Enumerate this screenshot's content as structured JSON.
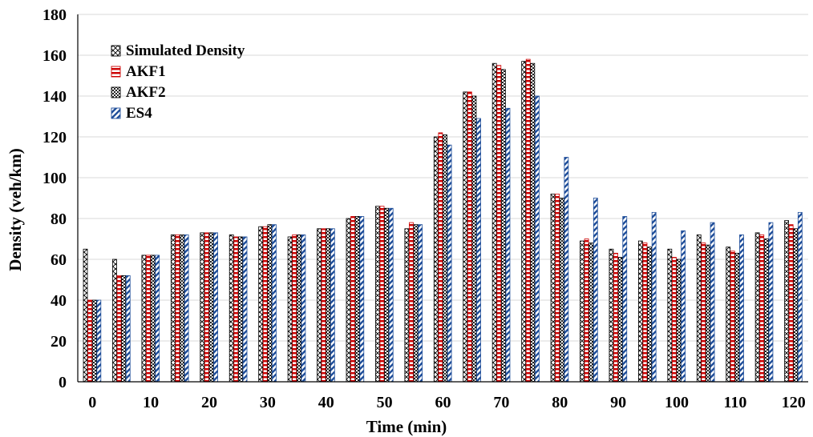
{
  "chart_data": {
    "type": "bar",
    "xlabel": "Time (min)",
    "ylabel": "Density (veh/km)",
    "ylim": [
      0,
      180
    ],
    "y_ticks": [
      0,
      20,
      40,
      60,
      80,
      100,
      120,
      140,
      160,
      180
    ],
    "x_tick_labels": [
      "0",
      "10",
      "20",
      "30",
      "40",
      "50",
      "60",
      "70",
      "80",
      "90",
      "100",
      "110",
      "120"
    ],
    "categories": [
      0,
      5,
      10,
      15,
      20,
      25,
      30,
      35,
      40,
      45,
      50,
      55,
      60,
      65,
      70,
      75,
      80,
      85,
      90,
      95,
      100,
      105,
      110,
      115,
      120
    ],
    "grid": "horizontal",
    "legend_position": "top-left",
    "series": [
      {
        "name": "Simulated Density",
        "pattern": "diamond",
        "color": "#000000",
        "values": [
          65,
          60,
          62,
          72,
          73,
          72,
          76,
          71,
          75,
          80,
          86,
          75,
          120,
          142,
          156,
          157,
          92,
          69,
          65,
          69,
          65,
          72,
          66,
          73,
          79
        ]
      },
      {
        "name": "AKF1",
        "pattern": "hstripe",
        "color": "#cc0000",
        "values": [
          40,
          52,
          62,
          72,
          73,
          71,
          76,
          72,
          75,
          81,
          86,
          78,
          122,
          142,
          155,
          158,
          92,
          70,
          63,
          68,
          61,
          68,
          64,
          72,
          77
        ]
      },
      {
        "name": "AKF2",
        "pattern": "check",
        "color": "#000000",
        "values": [
          40,
          52,
          62,
          72,
          73,
          71,
          77,
          72,
          75,
          81,
          85,
          77,
          121,
          140,
          153,
          156,
          90,
          68,
          61,
          66,
          60,
          67,
          63,
          70,
          75
        ]
      },
      {
        "name": "ES4",
        "pattern": "diag",
        "color": "#1f4e9a",
        "values": [
          40,
          52,
          62,
          72,
          73,
          71,
          77,
          72,
          75,
          81,
          85,
          77,
          116,
          129,
          134,
          140,
          110,
          90,
          81,
          83,
          74,
          78,
          72,
          78,
          83
        ]
      }
    ]
  }
}
